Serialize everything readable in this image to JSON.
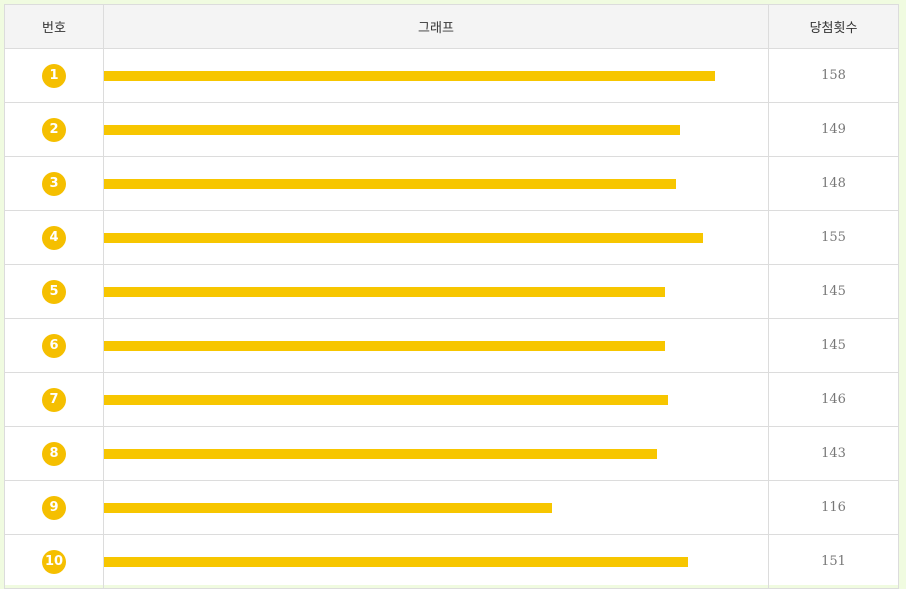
{
  "table": {
    "headers": {
      "number": "번호",
      "graph": "그래프",
      "count": "당첨횟수"
    }
  },
  "colors": {
    "ball": "#f5bf00",
    "bar": "#f7c600"
  },
  "chart_data": {
    "type": "bar",
    "orientation": "horizontal",
    "categories": [
      "1",
      "2",
      "3",
      "4",
      "5",
      "6",
      "7",
      "8",
      "9",
      "10"
    ],
    "values": [
      158,
      149,
      148,
      155,
      145,
      145,
      146,
      143,
      116,
      151
    ],
    "xlim": [
      0,
      172
    ],
    "grid": false,
    "legend": "none"
  }
}
